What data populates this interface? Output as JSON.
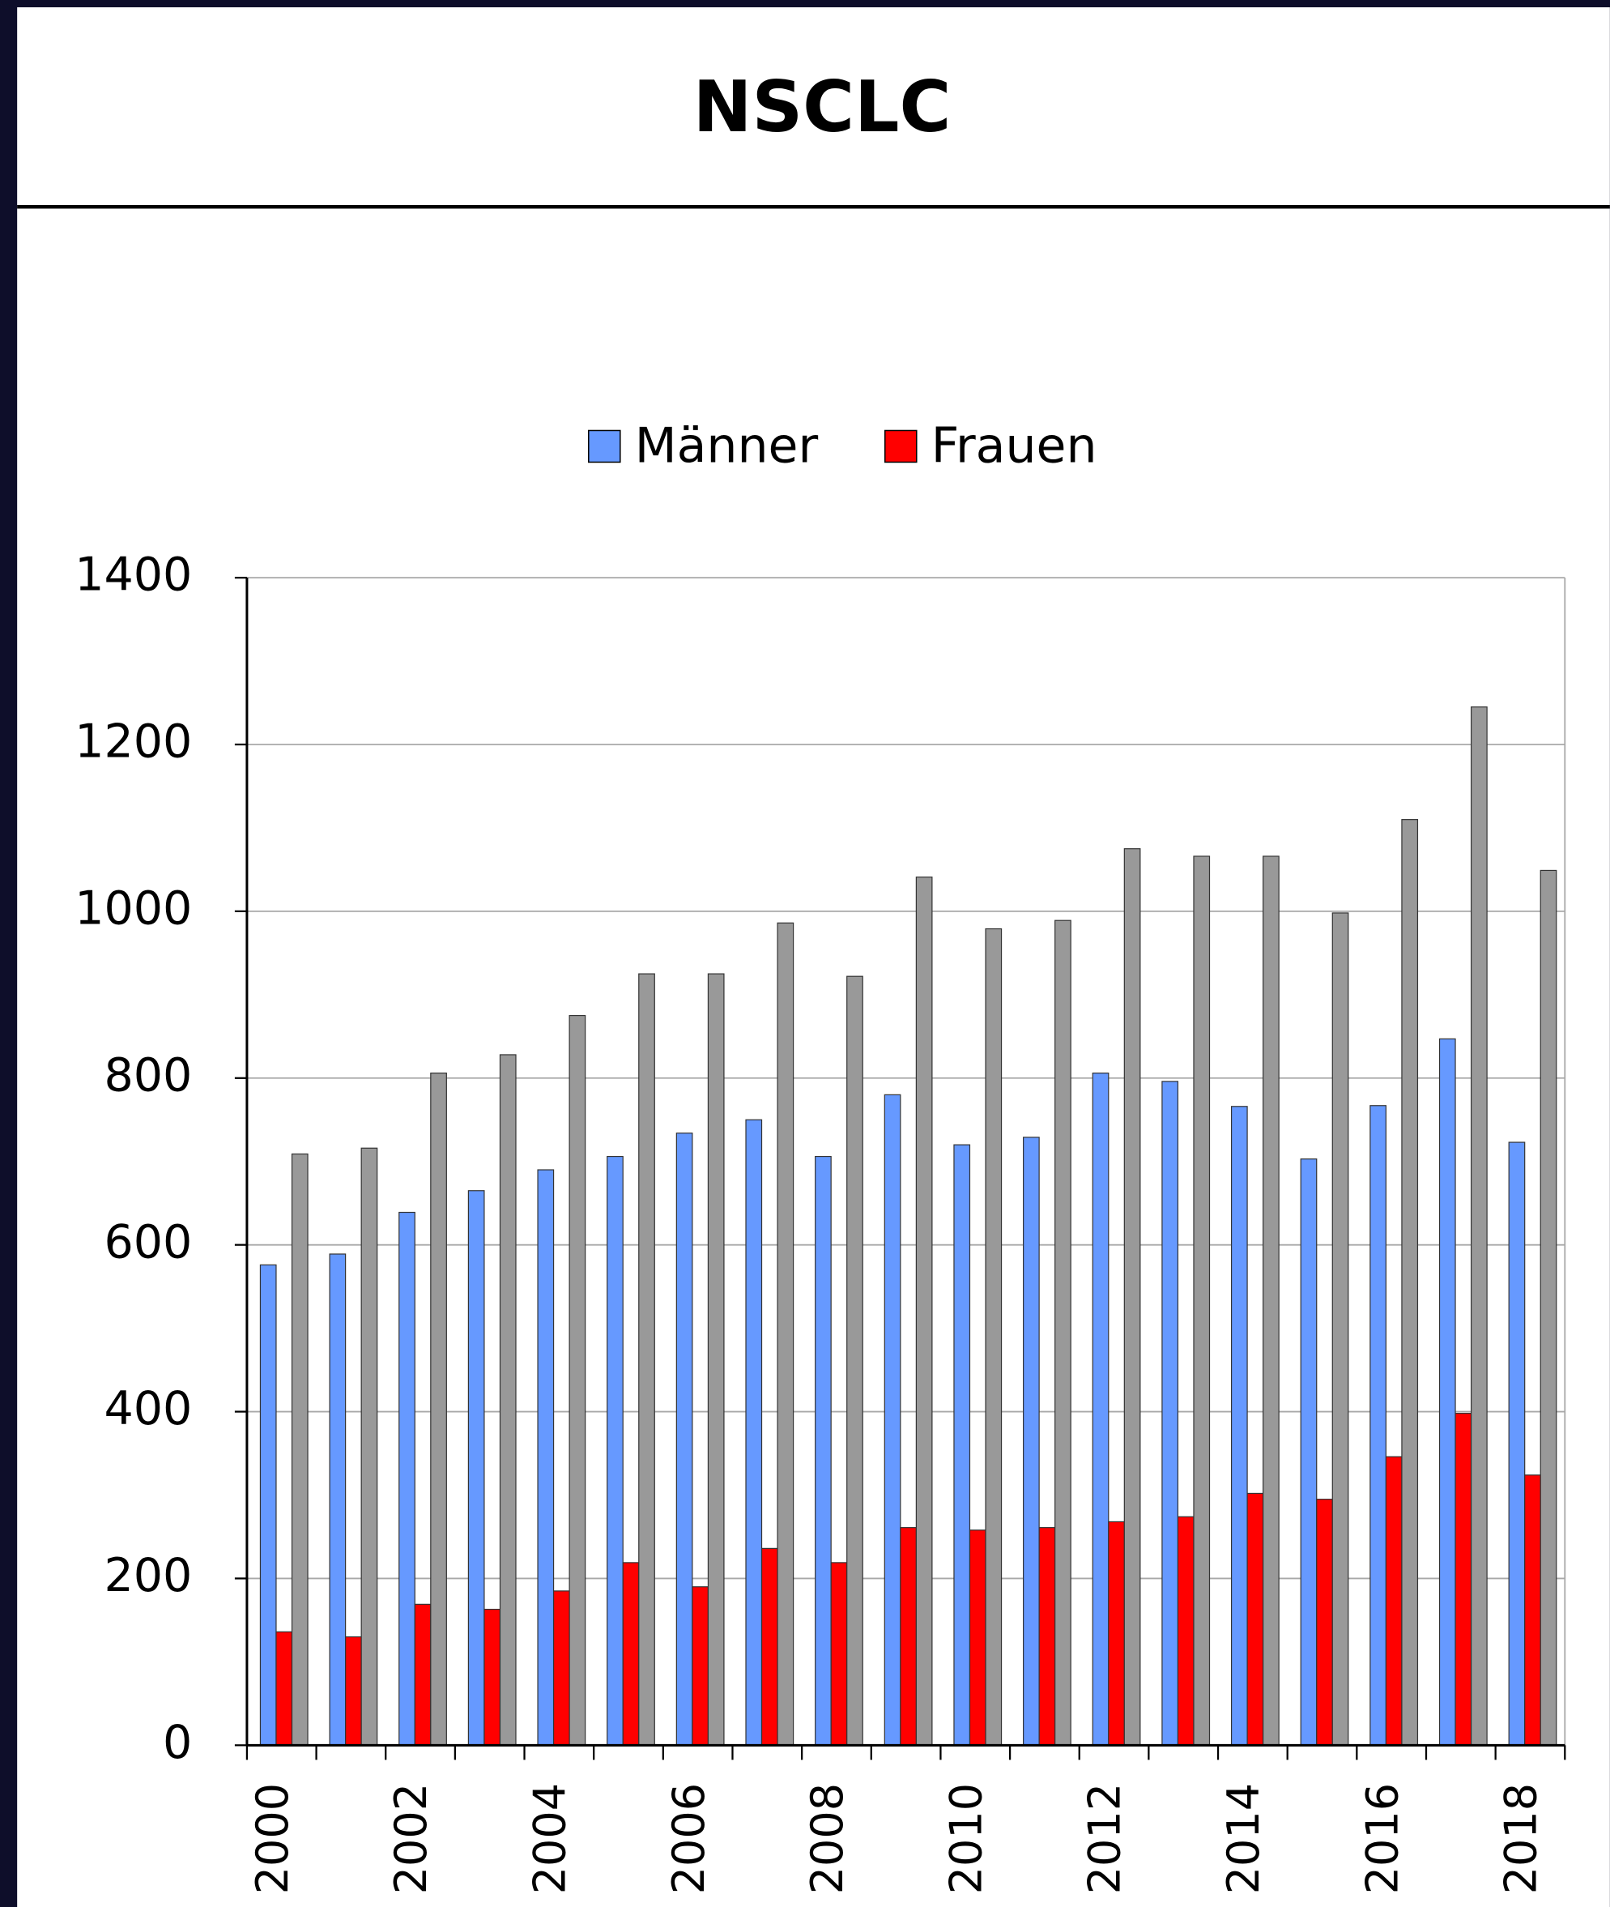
{
  "chart_data": {
    "type": "bar",
    "title": "NSCLC",
    "categories": [
      "2000",
      null,
      "2002",
      null,
      "2004",
      null,
      "2006",
      null,
      "2008",
      null,
      "2010",
      null,
      "2012",
      null,
      "2014",
      null,
      "2016",
      null,
      "2018"
    ],
    "series": [
      {
        "name": "Männer",
        "color": "#6699ff",
        "values": [
          576,
          589,
          639,
          665,
          690,
          706,
          734,
          750,
          706,
          780,
          720,
          729,
          806,
          796,
          766,
          703,
          767,
          847,
          723
        ]
      },
      {
        "name": "Frauen",
        "color": "#ff0000",
        "values": [
          136,
          130,
          169,
          163,
          185,
          219,
          190,
          236,
          219,
          261,
          258,
          261,
          268,
          274,
          302,
          295,
          346,
          398,
          324
        ]
      },
      {
        "color": "#999999",
        "values": [
          709,
          716,
          806,
          828,
          875,
          925,
          925,
          986,
          922,
          1041,
          979,
          989,
          1075,
          1066,
          1066,
          998,
          1110,
          1245,
          1049
        ]
      }
    ],
    "ylim": [
      0,
      1400
    ],
    "yticks": [
      0,
      200,
      400,
      600,
      800,
      1000,
      1200,
      1400
    ],
    "grid": true,
    "legend": "top"
  }
}
